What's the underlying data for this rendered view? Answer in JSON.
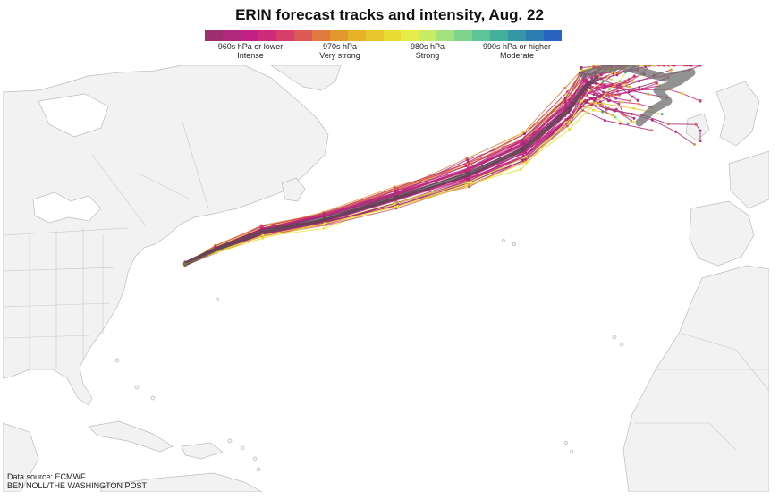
{
  "title": "ERIN forecast tracks and intensity, Aug. 22",
  "legend": {
    "colors": [
      "#9e2f6e",
      "#b0287e",
      "#c22084",
      "#cf2a7c",
      "#d73e6a",
      "#dc5a56",
      "#e07a40",
      "#e3982e",
      "#e5b228",
      "#e7c72c",
      "#e9dc33",
      "#e6ec4a",
      "#c8ec66",
      "#a3e27c",
      "#7fd48d",
      "#5ec496",
      "#43b09c",
      "#3596a5",
      "#2c7db2",
      "#2a64c2"
    ],
    "labels": [
      {
        "top": "960s hPa or lower",
        "bottom": "Intense"
      },
      {
        "top": "970s hPa",
        "bottom": "Very strong"
      },
      {
        "top": "980s hPa",
        "bottom": "Strong"
      },
      {
        "top": "990s hPa or higher",
        "bottom": "Moderate"
      }
    ]
  },
  "credits": {
    "source": "Data source: ECMWF",
    "byline": "BEN NOLL/THE WASHINGTON POST"
  },
  "colors": {
    "land": "#f2f2f2",
    "border": "#bcbcbc",
    "ensemble": "#b1267b",
    "mean_track": "#4a4a4a",
    "official_track": "#6e6e6e"
  }
}
